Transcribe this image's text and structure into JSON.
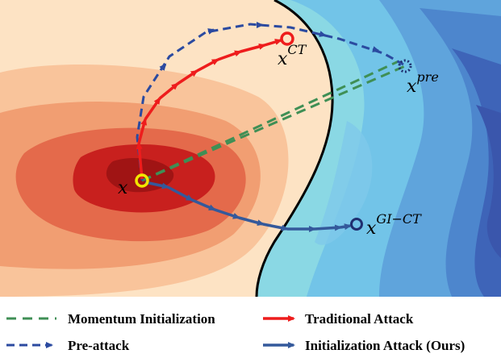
{
  "points": {
    "origin": {
      "base": "x",
      "sup": ""
    },
    "ct": {
      "base": "x",
      "sup": "CT"
    },
    "pre": {
      "base": "x",
      "sup": "pre"
    },
    "gict": {
      "base": "x",
      "sup": "GI−CT"
    }
  },
  "legend": {
    "momentum": "Momentum Initialization",
    "traditional": "Traditional Attack",
    "preattack": "Pre-attack",
    "initialization": "Initialization Attack (Ours)"
  },
  "colors": {
    "momentum": "#3f8f55",
    "traditional": "#ee1c1c",
    "preattack": "#2b4aa0",
    "initialization": "#34599b"
  }
}
